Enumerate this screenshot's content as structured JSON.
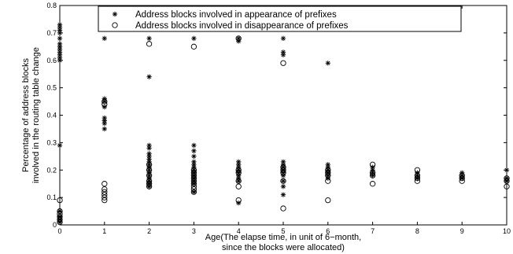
{
  "chart_data": {
    "type": "scatter",
    "title": "",
    "xlabel": [
      "Age(The elapse time, in unit of 6−month,",
      "since the blocks were allocated)"
    ],
    "ylabel": [
      "Percentage of address blocks",
      "involved in the routing table change"
    ],
    "xlim": [
      0,
      10
    ],
    "ylim": [
      0,
      0.8
    ],
    "xticks": [
      "0",
      "1",
      "2",
      "3",
      "4",
      "5",
      "6",
      "7",
      "8",
      "9",
      "10"
    ],
    "yticks": [
      "0",
      "0.1",
      "0.2",
      "0.3",
      "0.4",
      "0.5",
      "0.6",
      "0.7",
      "0.8"
    ],
    "grid": false,
    "legend_position": "top",
    "series": [
      {
        "name": "Address blocks involved in appearance of prefixes",
        "marker": "star",
        "points": [
          [
            0,
            0.73
          ],
          [
            0,
            0.72
          ],
          [
            0,
            0.71
          ],
          [
            0,
            0.7
          ],
          [
            0,
            0.68
          ],
          [
            0,
            0.66
          ],
          [
            0,
            0.65
          ],
          [
            0,
            0.64
          ],
          [
            0,
            0.63
          ],
          [
            0,
            0.62
          ],
          [
            0,
            0.61
          ],
          [
            0,
            0.6
          ],
          [
            0,
            0.29
          ],
          [
            0,
            0.05
          ],
          [
            0,
            0.03
          ],
          [
            0,
            0.02
          ],
          [
            0,
            0.01
          ],
          [
            1,
            0.68
          ],
          [
            1,
            0.46
          ],
          [
            1,
            0.45
          ],
          [
            1,
            0.43
          ],
          [
            1,
            0.39
          ],
          [
            1,
            0.38
          ],
          [
            1,
            0.37
          ],
          [
            1,
            0.35
          ],
          [
            2,
            0.68
          ],
          [
            2,
            0.54
          ],
          [
            2,
            0.29
          ],
          [
            2,
            0.28
          ],
          [
            2,
            0.26
          ],
          [
            2,
            0.25
          ],
          [
            2,
            0.24
          ],
          [
            2,
            0.23
          ],
          [
            2,
            0.22
          ],
          [
            2,
            0.21
          ],
          [
            2,
            0.2
          ],
          [
            2,
            0.19
          ],
          [
            2,
            0.18
          ],
          [
            2,
            0.17
          ],
          [
            2,
            0.16
          ],
          [
            2,
            0.15
          ],
          [
            2,
            0.14
          ],
          [
            3,
            0.68
          ],
          [
            3,
            0.29
          ],
          [
            3,
            0.27
          ],
          [
            3,
            0.25
          ],
          [
            3,
            0.23
          ],
          [
            3,
            0.22
          ],
          [
            3,
            0.21
          ],
          [
            3,
            0.2
          ],
          [
            3,
            0.19
          ],
          [
            3,
            0.18
          ],
          [
            3,
            0.17
          ],
          [
            3,
            0.16
          ],
          [
            3,
            0.15
          ],
          [
            3,
            0.12
          ],
          [
            4,
            0.68
          ],
          [
            4,
            0.67
          ],
          [
            4,
            0.23
          ],
          [
            4,
            0.22
          ],
          [
            4,
            0.21
          ],
          [
            4,
            0.2
          ],
          [
            4,
            0.19
          ],
          [
            4,
            0.18
          ],
          [
            4,
            0.17
          ],
          [
            4,
            0.16
          ],
          [
            4,
            0.08
          ],
          [
            5,
            0.68
          ],
          [
            5,
            0.63
          ],
          [
            5,
            0.62
          ],
          [
            5,
            0.23
          ],
          [
            5,
            0.22
          ],
          [
            5,
            0.21
          ],
          [
            5,
            0.2
          ],
          [
            5,
            0.19
          ],
          [
            5,
            0.18
          ],
          [
            5,
            0.16
          ],
          [
            5,
            0.14
          ],
          [
            5,
            0.11
          ],
          [
            6,
            0.59
          ],
          [
            6,
            0.22
          ],
          [
            6,
            0.21
          ],
          [
            6,
            0.2
          ],
          [
            6,
            0.19
          ],
          [
            6,
            0.18
          ],
          [
            6,
            0.17
          ],
          [
            7,
            0.21
          ],
          [
            7,
            0.2
          ],
          [
            7,
            0.19
          ],
          [
            7,
            0.18
          ],
          [
            8,
            0.19
          ],
          [
            8,
            0.18
          ],
          [
            8,
            0.17
          ],
          [
            9,
            0.19
          ],
          [
            9,
            0.18
          ],
          [
            9,
            0.17
          ],
          [
            10,
            0.2
          ],
          [
            10,
            0.17
          ],
          [
            10,
            0.16
          ]
        ]
      },
      {
        "name": "Address blocks involved in disappearance of prefixes",
        "marker": "circle",
        "points": [
          [
            0,
            0.09
          ],
          [
            0,
            0.05
          ],
          [
            0,
            0.04
          ],
          [
            0,
            0.03
          ],
          [
            0,
            0.02
          ],
          [
            0,
            0.01
          ],
          [
            1,
            0.45
          ],
          [
            1,
            0.44
          ],
          [
            1,
            0.15
          ],
          [
            1,
            0.13
          ],
          [
            1,
            0.12
          ],
          [
            1,
            0.11
          ],
          [
            1,
            0.1
          ],
          [
            1,
            0.09
          ],
          [
            2,
            0.66
          ],
          [
            2,
            0.22
          ],
          [
            2,
            0.2
          ],
          [
            2,
            0.18
          ],
          [
            2,
            0.16
          ],
          [
            2,
            0.15
          ],
          [
            2,
            0.14
          ],
          [
            3,
            0.65
          ],
          [
            3,
            0.2
          ],
          [
            3,
            0.19
          ],
          [
            3,
            0.18
          ],
          [
            3,
            0.17
          ],
          [
            3,
            0.16
          ],
          [
            3,
            0.15
          ],
          [
            3,
            0.14
          ],
          [
            3,
            0.13
          ],
          [
            3,
            0.12
          ],
          [
            4,
            0.68
          ],
          [
            4,
            0.2
          ],
          [
            4,
            0.19
          ],
          [
            4,
            0.16
          ],
          [
            4,
            0.14
          ],
          [
            4,
            0.09
          ],
          [
            5,
            0.59
          ],
          [
            5,
            0.21
          ],
          [
            5,
            0.2
          ],
          [
            5,
            0.19
          ],
          [
            5,
            0.16
          ],
          [
            5,
            0.06
          ],
          [
            6,
            0.2
          ],
          [
            6,
            0.19
          ],
          [
            6,
            0.18
          ],
          [
            6,
            0.16
          ],
          [
            6,
            0.09
          ],
          [
            7,
            0.22
          ],
          [
            7,
            0.19
          ],
          [
            7,
            0.18
          ],
          [
            7,
            0.15
          ],
          [
            8,
            0.2
          ],
          [
            8,
            0.18
          ],
          [
            8,
            0.17
          ],
          [
            8,
            0.16
          ],
          [
            9,
            0.18
          ],
          [
            9,
            0.17
          ],
          [
            9,
            0.16
          ],
          [
            10,
            0.17
          ],
          [
            10,
            0.16
          ],
          [
            10,
            0.14
          ]
        ]
      }
    ]
  }
}
